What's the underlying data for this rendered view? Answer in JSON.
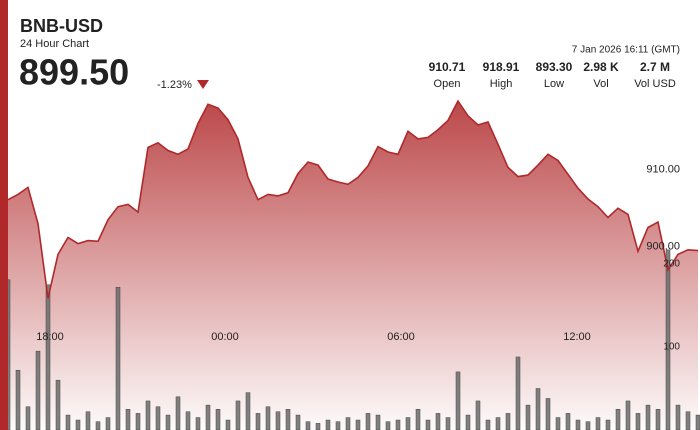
{
  "chart_data": {
    "type": "line",
    "title": "BNB-USD",
    "subtitle": "24 Hour Chart",
    "last_price": "899.50",
    "change": "-1.23%",
    "timestamp": "7 Jan 2026 16:11 (GMT)",
    "stats": [
      {
        "value": "910.71",
        "label": "Open"
      },
      {
        "value": "918.91",
        "label": "High"
      },
      {
        "value": "893.30",
        "label": "Low"
      },
      {
        "value": "2.98 K",
        "label": "Vol"
      },
      {
        "value": "2.7 M",
        "label": "Vol USD"
      }
    ],
    "color": "#b0282a",
    "values": [
      906.1,
      906.8,
      907.7,
      903.0,
      893.3,
      899.0,
      901.2,
      900.4,
      900.8,
      900.7,
      903.5,
      905.2,
      905.5,
      904.5,
      912.9,
      913.5,
      912.5,
      912.0,
      912.7,
      916.0,
      918.5,
      918.0,
      916.5,
      914.0,
      909.0,
      906.1,
      906.8,
      906.6,
      907.0,
      909.5,
      911.0,
      910.6,
      908.8,
      908.4,
      908.1,
      909.0,
      910.5,
      913.0,
      912.3,
      912.0,
      915.0,
      914.0,
      914.2,
      915.2,
      916.4,
      918.91,
      917.0,
      915.8,
      916.2,
      913.3,
      910.3,
      909.1,
      909.3,
      910.6,
      912.0,
      911.2,
      909.4,
      907.6,
      906.2,
      905.2,
      903.8,
      905.0,
      904.2,
      899.4,
      902.5,
      903.2,
      897.0,
      899.0,
      899.6,
      899.5
    ],
    "volume": {
      "axis": "y2",
      "color": "#6b6b6b",
      "values": [
        181,
        72,
        28,
        95,
        175,
        60,
        18,
        12,
        22,
        10,
        15,
        172,
        25,
        20,
        35,
        28,
        18,
        40,
        22,
        15,
        30,
        25,
        12,
        35,
        45,
        20,
        28,
        22,
        25,
        18,
        10,
        8,
        12,
        10,
        15,
        12,
        20,
        18,
        10,
        12,
        15,
        25,
        12,
        20,
        15,
        70,
        18,
        35,
        12,
        15,
        20,
        88,
        30,
        50,
        38,
        15,
        20,
        12,
        10,
        15,
        12,
        25,
        35,
        20,
        30,
        25,
        217,
        30,
        22,
        18
      ]
    },
    "xlim": [
      0,
      69
    ],
    "xticks": [
      {
        "value": 4.2,
        "label": "18:00"
      },
      {
        "value": 21.7,
        "label": "00:00"
      },
      {
        "value": 39.3,
        "label": "06:00"
      },
      {
        "value": 56.9,
        "label": "12:00"
      }
    ],
    "ylim": [
      876.2,
      921.0
    ],
    "yticks": [
      {
        "value": 900,
        "label": "900.00"
      },
      {
        "value": 910,
        "label": "910.00"
      }
    ],
    "y2lim": [
      0,
      415.7
    ],
    "y2ticks": [
      100,
      200
    ]
  }
}
